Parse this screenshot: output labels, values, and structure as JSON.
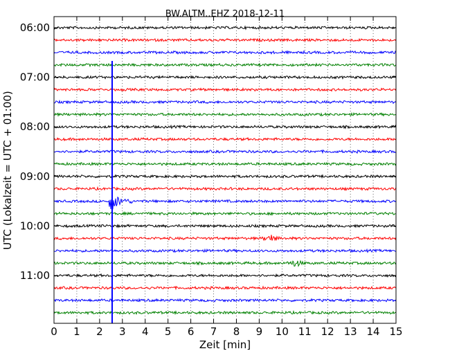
{
  "chart_data": {
    "type": "line",
    "title": "BW.ALTM..EHZ 2018-12-11",
    "xlabel": "Zeit  [min]",
    "ylabel": "UTC (Lokalzeit = UTC + 01:00)",
    "xlim": [
      0,
      15
    ],
    "x_ticks": [
      0,
      1,
      2,
      3,
      4,
      5,
      6,
      7,
      8,
      9,
      10,
      11,
      12,
      13,
      14,
      15
    ],
    "x_tick_labels": [
      "0",
      "1",
      "2",
      "3",
      "4",
      "5",
      "6",
      "7",
      "8",
      "9",
      "10",
      "11",
      "12",
      "13",
      "14",
      "15"
    ],
    "y_tick_labels": [
      "06:00",
      "07:00",
      "08:00",
      "09:00",
      "10:00",
      "11:00"
    ],
    "grid": "vertical dotted",
    "trace_interval_min": 15,
    "colors": [
      "#000000",
      "#ff0000",
      "#0000ff",
      "#008000"
    ],
    "traces": [
      {
        "start": "06:00",
        "color": "#000000"
      },
      {
        "start": "06:15",
        "color": "#ff0000"
      },
      {
        "start": "06:30",
        "color": "#0000ff"
      },
      {
        "start": "06:45",
        "color": "#008000"
      },
      {
        "start": "07:00",
        "color": "#000000"
      },
      {
        "start": "07:15",
        "color": "#ff0000"
      },
      {
        "start": "07:30",
        "color": "#0000ff"
      },
      {
        "start": "07:45",
        "color": "#008000"
      },
      {
        "start": "08:00",
        "color": "#000000"
      },
      {
        "start": "08:15",
        "color": "#ff0000"
      },
      {
        "start": "08:30",
        "color": "#0000ff"
      },
      {
        "start": "08:45",
        "color": "#008000"
      },
      {
        "start": "09:00",
        "color": "#000000"
      },
      {
        "start": "09:15",
        "color": "#ff0000"
      },
      {
        "start": "09:30",
        "color": "#0000ff"
      },
      {
        "start": "09:45",
        "color": "#008000"
      },
      {
        "start": "10:00",
        "color": "#000000"
      },
      {
        "start": "10:15",
        "color": "#ff0000"
      },
      {
        "start": "10:30",
        "color": "#0000ff"
      },
      {
        "start": "10:45",
        "color": "#008000"
      },
      {
        "start": "11:00",
        "color": "#000000"
      },
      {
        "start": "11:15",
        "color": "#ff0000"
      },
      {
        "start": "11:30",
        "color": "#0000ff"
      },
      {
        "start": "11:45",
        "color": "#008000"
      }
    ],
    "events": [
      {
        "trace": "09:30",
        "time_min": 2.55,
        "description": "large blue spike spanning many traces"
      },
      {
        "trace": "10:15",
        "time_min": 9.5,
        "description": "small burst"
      },
      {
        "trace": "10:45",
        "time_min": 10.6,
        "description": "small burst"
      }
    ]
  }
}
